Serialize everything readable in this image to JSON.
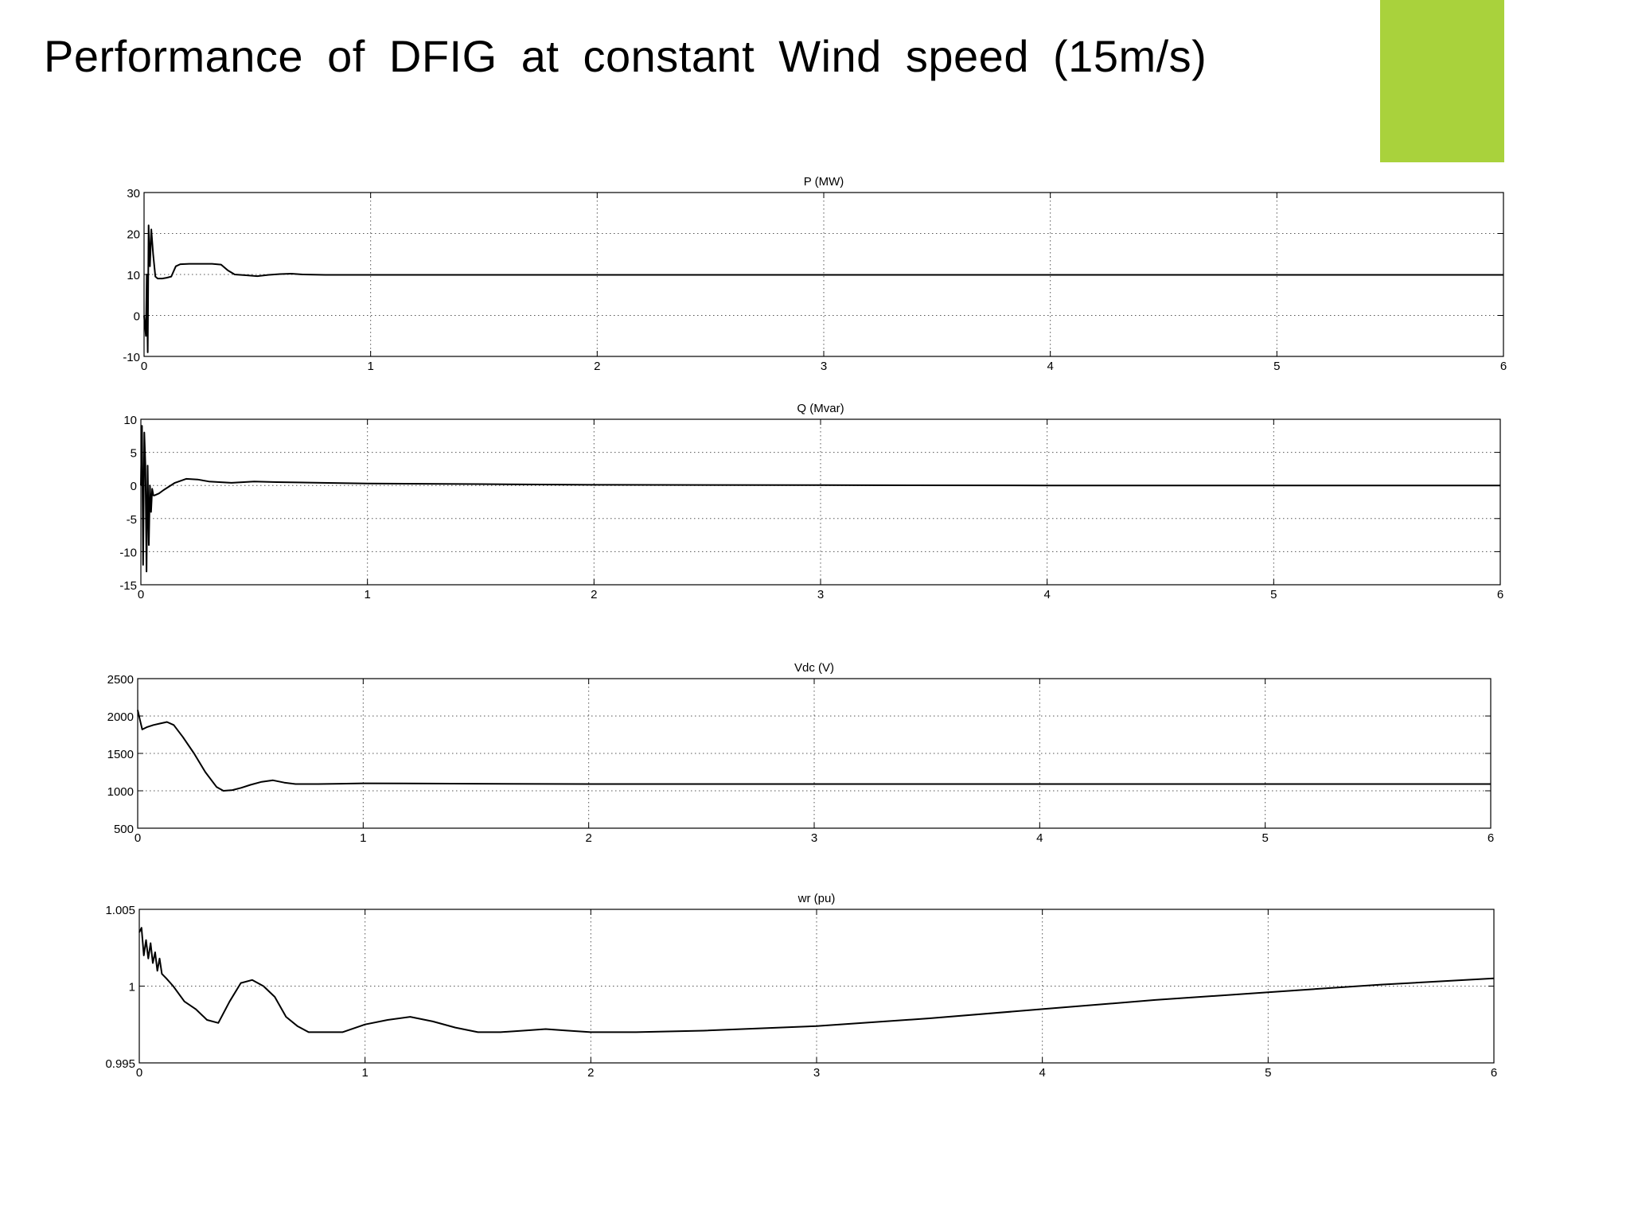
{
  "page": {
    "title": "Performance of DFIG at constant Wind speed (15m/s)",
    "accent_color": "#a9d23c"
  },
  "chart_data": [
    {
      "type": "line",
      "title": "P (MW)",
      "xlim": [
        0,
        6
      ],
      "ylim": [
        -10,
        30
      ],
      "x_ticks": [
        "0",
        "1",
        "2",
        "3",
        "4",
        "5",
        "6"
      ],
      "y_ticks": [
        "30",
        "20",
        "10",
        "0",
        "-10"
      ],
      "y_tick_values": [
        30,
        20,
        10,
        0,
        -10
      ],
      "grid": true,
      "series": [
        {
          "x": [
            0,
            0.008,
            0.012,
            0.016,
            0.02,
            0.026,
            0.032,
            0.04,
            0.05,
            0.06,
            0.08,
            0.1,
            0.12,
            0.14,
            0.16,
            0.2,
            0.25,
            0.3,
            0.34,
            0.37,
            0.4,
            0.45,
            0.5,
            0.55,
            0.6,
            0.65,
            0.7,
            0.8,
            0.9,
            1.0,
            2.0,
            3.0,
            4.0,
            5.0,
            6.0
          ],
          "y": [
            0,
            -5,
            10,
            -9,
            22,
            12,
            21,
            15,
            9.5,
            9,
            9,
            9.2,
            9.5,
            12,
            12.5,
            12.6,
            12.6,
            12.6,
            12.4,
            11,
            10,
            9.8,
            9.6,
            9.9,
            10.1,
            10.2,
            10,
            9.9,
            9.9,
            9.9,
            9.9,
            9.9,
            9.9,
            9.9,
            9.9
          ]
        }
      ]
    },
    {
      "type": "line",
      "title": "Q (Mvar)",
      "xlim": [
        0,
        6
      ],
      "ylim": [
        -15,
        10
      ],
      "x_ticks": [
        "0",
        "1",
        "2",
        "3",
        "4",
        "5",
        "6"
      ],
      "y_ticks": [
        "10",
        "5",
        "0",
        "-5",
        "-10",
        "-15"
      ],
      "y_tick_values": [
        10,
        5,
        0,
        -5,
        -10,
        -15
      ],
      "grid": true,
      "series": [
        {
          "x": [
            0,
            0.005,
            0.01,
            0.015,
            0.02,
            0.025,
            0.03,
            0.035,
            0.04,
            0.045,
            0.05,
            0.055,
            0.06,
            0.08,
            0.1,
            0.15,
            0.2,
            0.25,
            0.3,
            0.4,
            0.5,
            0.6,
            0.8,
            1.0,
            1.5,
            2.0,
            3.0,
            4.0,
            5.0,
            6.0
          ],
          "y": [
            0,
            9,
            -12,
            8,
            3,
            -13,
            3,
            -9,
            0,
            -4,
            -0.5,
            -1.5,
            -1.5,
            -1.2,
            -0.7,
            0.4,
            1.0,
            0.9,
            0.6,
            0.4,
            0.6,
            0.5,
            0.4,
            0.3,
            0.2,
            0.1,
            0.05,
            0.0,
            0.0,
            0.0
          ]
        }
      ]
    },
    {
      "type": "line",
      "title": "Vdc (V)",
      "xlim": [
        0,
        6
      ],
      "ylim": [
        500,
        2500
      ],
      "x_ticks": [
        "0",
        "1",
        "2",
        "3",
        "4",
        "5",
        "6"
      ],
      "y_ticks": [
        "2500",
        "2000",
        "1500",
        "1000",
        "500"
      ],
      "y_tick_values": [
        2500,
        2000,
        1500,
        1000,
        500
      ],
      "grid": true,
      "series": [
        {
          "x": [
            0,
            0.01,
            0.02,
            0.04,
            0.07,
            0.1,
            0.13,
            0.16,
            0.2,
            0.25,
            0.3,
            0.35,
            0.38,
            0.42,
            0.46,
            0.5,
            0.55,
            0.6,
            0.65,
            0.7,
            0.8,
            0.9,
            1.0,
            1.5,
            2.0,
            3.0,
            4.0,
            5.0,
            6.0
          ],
          "y": [
            2080,
            1950,
            1820,
            1850,
            1880,
            1900,
            1920,
            1880,
            1720,
            1500,
            1250,
            1050,
            1000,
            1010,
            1040,
            1080,
            1120,
            1140,
            1110,
            1090,
            1090,
            1095,
            1100,
            1095,
            1090,
            1090,
            1090,
            1090,
            1090
          ]
        }
      ]
    },
    {
      "type": "line",
      "title": "wr (pu)",
      "xlim": [
        0,
        6
      ],
      "ylim": [
        0.995,
        1.005
      ],
      "x_ticks": [
        "0",
        "1",
        "2",
        "3",
        "4",
        "5",
        "6"
      ],
      "y_ticks": [
        "1.005",
        "1",
        "0.995"
      ],
      "y_tick_values": [
        1.005,
        1.0,
        0.995
      ],
      "grid": true,
      "series": [
        {
          "x": [
            0,
            0.01,
            0.02,
            0.03,
            0.04,
            0.05,
            0.06,
            0.07,
            0.08,
            0.09,
            0.1,
            0.12,
            0.15,
            0.2,
            0.25,
            0.3,
            0.35,
            0.4,
            0.45,
            0.5,
            0.55,
            0.6,
            0.65,
            0.7,
            0.75,
            0.8,
            0.85,
            0.9,
            1.0,
            1.1,
            1.2,
            1.3,
            1.4,
            1.5,
            1.6,
            1.7,
            1.8,
            1.9,
            2.0,
            2.2,
            2.5,
            3.0,
            3.5,
            4.0,
            4.5,
            5.0,
            5.5,
            6.0
          ],
          "y": [
            1.0035,
            1.0038,
            1.002,
            1.003,
            1.0018,
            1.0028,
            1.0015,
            1.0022,
            1.001,
            1.0018,
            1.0008,
            1.0005,
            1.0,
            0.999,
            0.9985,
            0.9978,
            0.9976,
            0.999,
            1.0002,
            1.0004,
            1.0,
            0.9993,
            0.998,
            0.9974,
            0.997,
            0.997,
            0.997,
            0.997,
            0.9975,
            0.9978,
            0.998,
            0.9977,
            0.9973,
            0.997,
            0.997,
            0.9971,
            0.9972,
            0.9971,
            0.997,
            0.997,
            0.9971,
            0.9974,
            0.9979,
            0.9985,
            0.9991,
            0.9996,
            1.0001,
            1.0005
          ]
        }
      ]
    }
  ]
}
